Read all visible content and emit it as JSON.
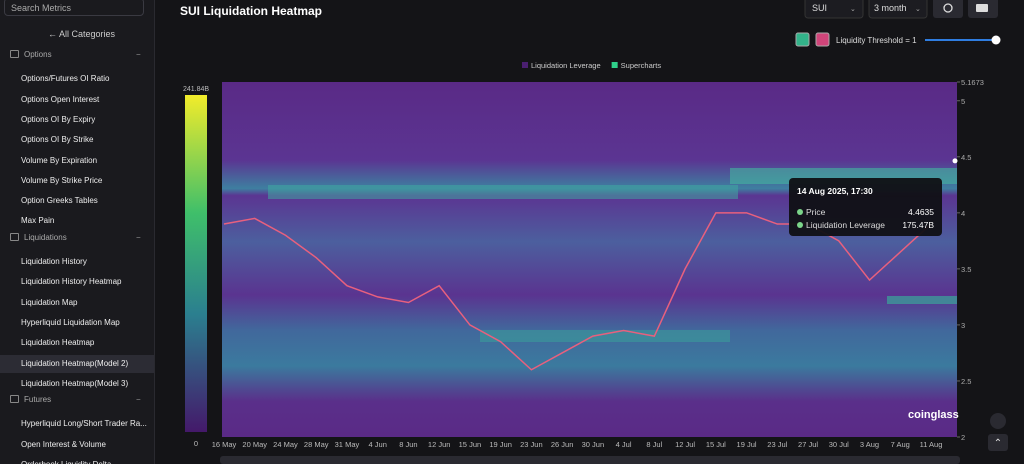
{
  "sidebar": {
    "search": "Search Metrics",
    "all_categories": "All Categories",
    "sections": [
      {
        "title": "Options",
        "items": [
          "Options/Futures OI Ratio",
          "Options Open Interest",
          "Options OI By Expiry",
          "Options OI By Strike",
          "Volume By Expiration",
          "Volume By Strike Price",
          "Option Greeks Tables",
          "Max Pain"
        ]
      },
      {
        "title": "Liquidations",
        "items": [
          "Liquidation History",
          "Liquidation History Heatmap",
          "Liquidation Map",
          "Hyperliquid Liquidation Map",
          "Liquidation Heatmap",
          "Liquidation Heatmap(Model 2)",
          "Liquidation Heatmap(Model 3)"
        ]
      },
      {
        "title": "Futures",
        "items": [
          "Hyperliquid Long/Short Trader Ra...",
          "Open Interest & Volume",
          "Orderbook Liquidity Delta"
        ]
      }
    ]
  },
  "header": {
    "coin": "SUI",
    "range": "3 month",
    "threshold": "Liquidity Threshold = 1"
  },
  "chart_data": {
    "type": "heatmap",
    "title": "SUI Liquidation Heatmap",
    "legend": [
      {
        "name": "Liquidation Leverage",
        "color": "#4a1f70"
      },
      {
        "name": "Supercharts",
        "color": "#2fd08a"
      }
    ],
    "categories": [
      "16 May",
      "20 May",
      "24 May",
      "28 May",
      "31 May",
      "4 Jun",
      "8 Jun",
      "12 Jun",
      "15 Jun",
      "19 Jun",
      "23 Jun",
      "26 Jun",
      "30 Jun",
      "4 Jul",
      "8 Jul",
      "12 Jul",
      "15 Jul",
      "19 Jul",
      "23 Jul",
      "27 Jul",
      "30 Jul",
      "3 Aug",
      "7 Aug",
      "11 Aug"
    ],
    "values": [
      3.9,
      3.95,
      3.8,
      3.6,
      3.35,
      3.25,
      3.2,
      3.35,
      3.0,
      2.85,
      2.6,
      2.75,
      2.9,
      2.95,
      2.9,
      3.5,
      4.0,
      4.0,
      3.9,
      3.9,
      3.75,
      3.4,
      3.65,
      3.9
    ],
    "price_color": "#e8607e",
    "ylim": [
      2,
      5.1673
    ],
    "yticks": [
      2,
      2.5,
      3,
      3.5,
      4,
      4.5,
      5,
      5.1673
    ],
    "colorbar": {
      "min": 0,
      "max": {
        "value": 241.84,
        "label": "241.84B"
      }
    },
    "tooltip": {
      "date": "14 Aug 2025, 17:30",
      "price_label": "Price",
      "price": 4.4635,
      "leverage_label": "Liquidation Leverage",
      "leverage": {
        "value": 175.47,
        "label": "175.47B"
      }
    },
    "watermark": "coinglass"
  }
}
